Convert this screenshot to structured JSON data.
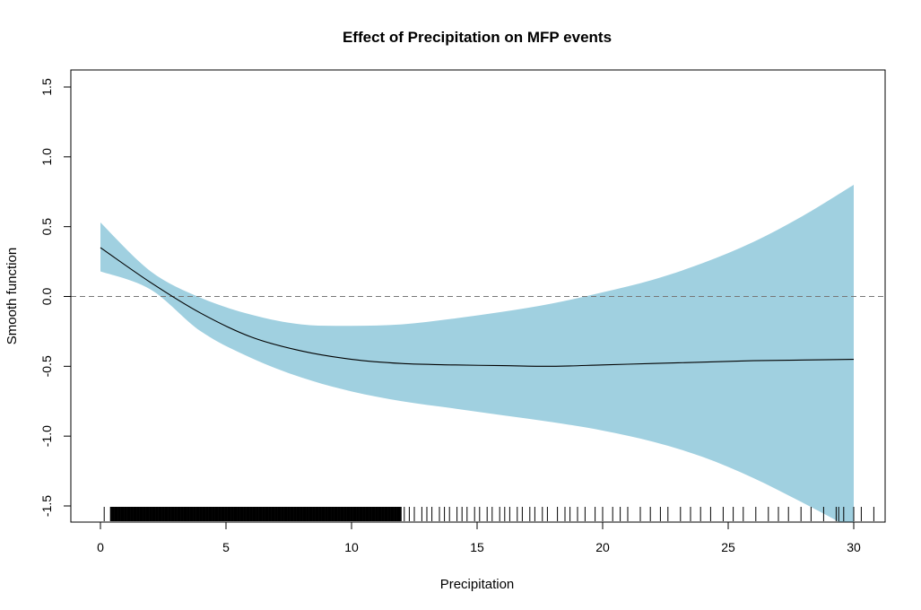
{
  "chart_data": {
    "type": "line",
    "title": "Effect of Precipitation on MFP events",
    "xlabel": "Precipitation",
    "ylabel": "Smooth function",
    "xlim": [
      0,
      30
    ],
    "ylim": [
      -1.5,
      1.5
    ],
    "x_ticks": [
      "0",
      "5",
      "10",
      "15",
      "20",
      "25",
      "30"
    ],
    "y_ticks": [
      "-1.5",
      "-1.0",
      "-0.5",
      "0.0",
      "0.5",
      "1.0",
      "1.5"
    ],
    "reference_line": {
      "y": 0,
      "style": "dashed",
      "color": "#777777"
    },
    "band_color": "#a0d0e0",
    "line_color": "#000000",
    "series": [
      {
        "x": [
          0,
          2,
          4,
          6,
          8,
          10,
          12,
          14,
          16,
          18,
          20,
          22,
          24,
          26,
          28,
          30
        ],
        "fit": [
          0.35,
          0.1,
          -0.12,
          -0.29,
          -0.39,
          -0.45,
          -0.48,
          -0.49,
          -0.495,
          -0.5,
          -0.49,
          -0.48,
          -0.47,
          -0.46,
          -0.455,
          -0.45
        ],
        "lower": [
          0.18,
          0.05,
          -0.25,
          -0.44,
          -0.58,
          -0.68,
          -0.75,
          -0.8,
          -0.85,
          -0.9,
          -0.96,
          -1.04,
          -1.15,
          -1.3,
          -1.48,
          -1.67
        ],
        "upper": [
          0.53,
          0.18,
          -0.01,
          -0.13,
          -0.2,
          -0.21,
          -0.2,
          -0.16,
          -0.11,
          -0.05,
          0.03,
          0.12,
          0.24,
          0.39,
          0.58,
          0.8
        ]
      }
    ],
    "rug": {
      "dense_range": [
        0.4,
        12
      ],
      "points": [
        0.15,
        12.1,
        12.3,
        12.5,
        12.8,
        13.0,
        13.2,
        13.5,
        13.7,
        13.9,
        14.2,
        14.4,
        14.6,
        14.9,
        15.1,
        15.4,
        15.6,
        15.9,
        16.1,
        16.3,
        16.6,
        16.8,
        17.1,
        17.3,
        17.6,
        17.8,
        18.2,
        18.5,
        18.7,
        19.0,
        19.3,
        19.7,
        20.0,
        20.4,
        20.7,
        21.0,
        21.5,
        21.9,
        22.3,
        22.6,
        23.1,
        23.5,
        23.9,
        24.3,
        24.8,
        25.2,
        25.6,
        26.1,
        26.6,
        27.0,
        27.4,
        27.9,
        28.3,
        28.8,
        29.3,
        29.4,
        29.6,
        30.0,
        30.3,
        30.8
      ]
    }
  }
}
